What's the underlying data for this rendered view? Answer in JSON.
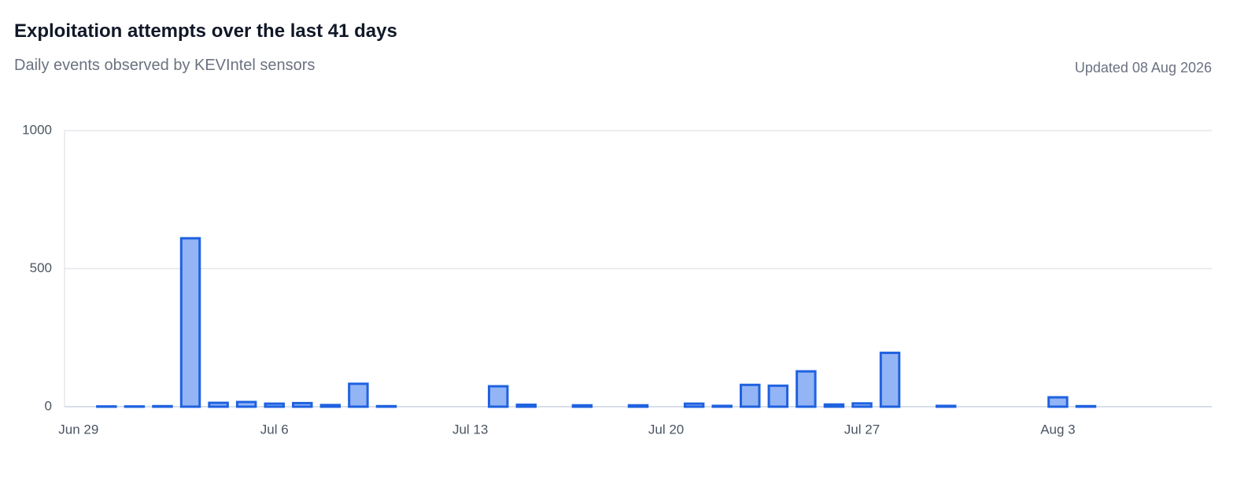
{
  "header": {
    "title": "Exploitation attempts over the last 41 days",
    "subtitle": "Daily events observed by KEVIntel sensors",
    "updated": "Updated 08 Aug 2026"
  },
  "chart_data": {
    "type": "bar",
    "categories": [
      "Jun 29",
      null,
      null,
      null,
      null,
      null,
      null,
      "Jul 6",
      null,
      null,
      null,
      null,
      null,
      null,
      "Jul 13",
      null,
      null,
      null,
      null,
      null,
      null,
      "Jul 20",
      null,
      null,
      null,
      null,
      null,
      null,
      "Jul 27",
      null,
      null,
      null,
      null,
      null,
      null,
      "Aug 3",
      null,
      null,
      null,
      null,
      null
    ],
    "values": [
      0,
      1,
      1,
      2,
      610,
      14,
      17,
      11,
      13,
      6,
      83,
      2,
      0,
      0,
      0,
      74,
      7,
      0,
      5,
      0,
      5,
      0,
      11,
      3,
      79,
      76,
      128,
      8,
      12,
      195,
      0,
      3,
      0,
      0,
      0,
      34,
      2,
      0,
      0,
      0,
      0
    ],
    "color": "#93b4f5",
    "edge_color": "#1f62e0",
    "ylim": [
      0,
      1000
    ],
    "yticks": [
      0,
      500,
      1000
    ],
    "grid": true
  }
}
